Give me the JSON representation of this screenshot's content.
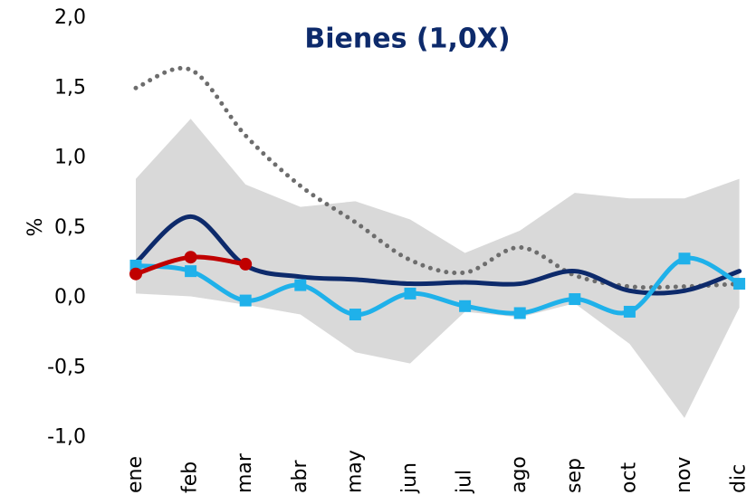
{
  "chart_data": {
    "type": "line",
    "title": "Bienes (1,0X)",
    "y_label": "%",
    "categories": [
      "ene",
      "feb",
      "mar",
      "abr",
      "may",
      "jun",
      "jul",
      "ago",
      "sep",
      "oct",
      "nov",
      "dic"
    ],
    "ylim": [
      -1.0,
      2.0
    ],
    "yticks": [
      {
        "value": -1.0,
        "label": "-1,0"
      },
      {
        "value": -0.5,
        "label": "-0,5"
      },
      {
        "value": 0,
        "label": "0,0"
      },
      {
        "value": 0.5,
        "label": "0,5"
      },
      {
        "value": 1.0,
        "label": "1,0"
      },
      {
        "value": 1.5,
        "label": "1,5"
      },
      {
        "value": 2.0,
        "label": "2,0"
      }
    ],
    "smooth": true,
    "band": {
      "color": "#d9d9d9",
      "upper": [
        0.85,
        1.28,
        0.81,
        0.65,
        0.69,
        0.56,
        0.32,
        0.48,
        0.75,
        0.71,
        0.71,
        0.85
      ],
      "lower": [
        0.03,
        0.01,
        -0.05,
        -0.12,
        -0.39,
        -0.47,
        -0.1,
        -0.14,
        -0.04,
        -0.33,
        -0.86,
        -0.07
      ]
    },
    "series": [
      {
        "color": "#6d6d6d",
        "dash": "dotted",
        "values": [
          1.5,
          1.63,
          1.16,
          0.8,
          0.54,
          0.27,
          0.18,
          0.36,
          0.16,
          0.08,
          0.08,
          0.1
        ]
      },
      {
        "color": "#0d2a6b",
        "values": [
          0.25,
          0.58,
          0.23,
          0.15,
          0.13,
          0.1,
          0.11,
          0.1,
          0.19,
          0.05,
          0.05,
          0.19
        ]
      },
      {
        "color": "#1fb1ea",
        "marker": "square",
        "values": [
          0.23,
          0.19,
          -0.02,
          0.09,
          -0.12,
          0.03,
          -0.06,
          -0.11,
          -0.01,
          -0.1,
          0.28,
          0.1
        ]
      },
      {
        "color": "#c00000",
        "marker": "circle",
        "values": [
          0.17,
          0.29,
          0.24,
          null,
          null,
          null,
          null,
          null,
          null,
          null,
          null,
          null
        ]
      }
    ]
  }
}
